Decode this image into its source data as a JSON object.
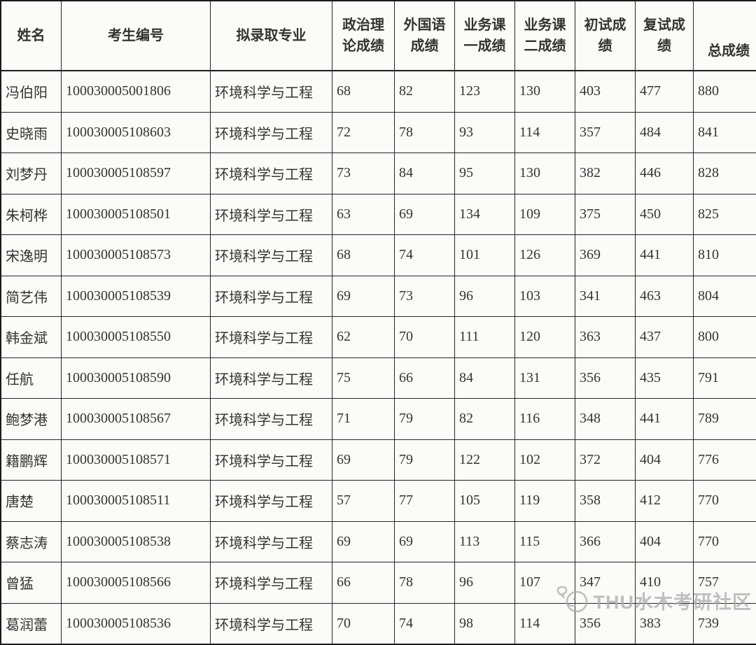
{
  "page": {
    "background": "#f6f6f4",
    "border_color": "#1b1b1b",
    "text_color": "#333331"
  },
  "watermark": {
    "text": "THU水木考研社区",
    "color": "#a8a8a8",
    "icon": "mascot-chat-bubble-icon"
  },
  "table": {
    "headers": [
      {
        "lines": [
          "姓名"
        ]
      },
      {
        "lines": [
          "考生编号"
        ]
      },
      {
        "lines": [
          "拟录取专业"
        ]
      },
      {
        "lines": [
          "政治理",
          "论成绩"
        ]
      },
      {
        "lines": [
          "外国语",
          "成绩"
        ]
      },
      {
        "lines": [
          "业务课",
          "一成绩"
        ]
      },
      {
        "lines": [
          "业务课",
          "二成绩"
        ]
      },
      {
        "lines": [
          "初试成",
          "绩"
        ]
      },
      {
        "lines": [
          "复试成",
          "绩"
        ]
      },
      {
        "lines": [
          "总成绩"
        ]
      }
    ],
    "rows": [
      [
        "冯伯阳",
        "100030005001806",
        "环境科学与工程",
        "68",
        "82",
        "123",
        "130",
        "403",
        "477",
        "880"
      ],
      [
        "史晓雨",
        "100030005108603",
        "环境科学与工程",
        "72",
        "78",
        "93",
        "114",
        "357",
        "484",
        "841"
      ],
      [
        "刘梦丹",
        "100030005108597",
        "环境科学与工程",
        "73",
        "84",
        "95",
        "130",
        "382",
        "446",
        "828"
      ],
      [
        "朱柯桦",
        "100030005108501",
        "环境科学与工程",
        "63",
        "69",
        "134",
        "109",
        "375",
        "450",
        "825"
      ],
      [
        "宋逸明",
        "100030005108573",
        "环境科学与工程",
        "68",
        "74",
        "101",
        "126",
        "369",
        "441",
        "810"
      ],
      [
        "简艺伟",
        "100030005108539",
        "环境科学与工程",
        "69",
        "73",
        "96",
        "103",
        "341",
        "463",
        "804"
      ],
      [
        "韩金斌",
        "100030005108550",
        "环境科学与工程",
        "62",
        "70",
        "111",
        "120",
        "363",
        "437",
        "800"
      ],
      [
        "任航",
        "100030005108590",
        "环境科学与工程",
        "75",
        "66",
        "84",
        "131",
        "356",
        "435",
        "791"
      ],
      [
        "鲍梦港",
        "100030005108567",
        "环境科学与工程",
        "71",
        "79",
        "82",
        "116",
        "348",
        "441",
        "789"
      ],
      [
        "籍鹏辉",
        "100030005108571",
        "环境科学与工程",
        "69",
        "79",
        "122",
        "102",
        "372",
        "404",
        "776"
      ],
      [
        "唐楚",
        "100030005108511",
        "环境科学与工程",
        "57",
        "77",
        "105",
        "119",
        "358",
        "412",
        "770"
      ],
      [
        "蔡志涛",
        "100030005108538",
        "环境科学与工程",
        "69",
        "69",
        "113",
        "115",
        "366",
        "404",
        "770"
      ],
      [
        "曾猛",
        "100030005108566",
        "环境科学与工程",
        "66",
        "78",
        "96",
        "107",
        "347",
        "410",
        "757"
      ],
      [
        "葛润蕾",
        "100030005108536",
        "环境科学与工程",
        "70",
        "74",
        "98",
        "114",
        "356",
        "383",
        "739"
      ]
    ]
  }
}
